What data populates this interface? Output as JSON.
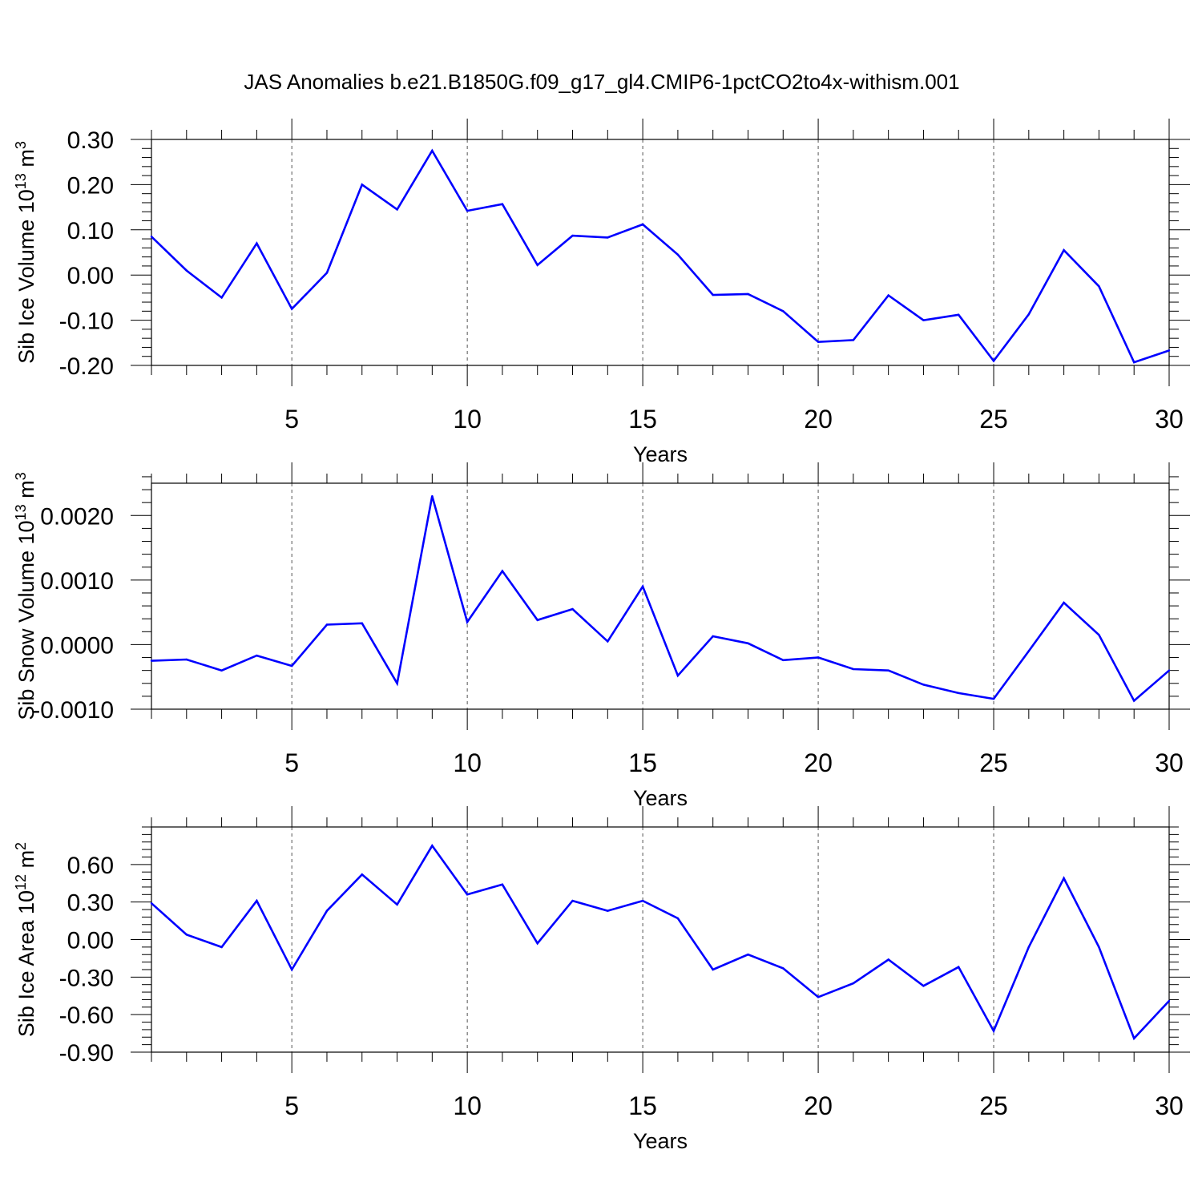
{
  "title": "JAS Anomalies b.e21.B1850G.f09_g17_gl4.CMIP6-1pctCO2to4x-withism.001",
  "colors": {
    "series": "#0000ff",
    "axis": "#000000",
    "grid": "#555555"
  },
  "chart_data": [
    {
      "type": "line",
      "xlabel": "Years",
      "ylabel": "Sib Ice Volume 10",
      "ylabel_exp": "13",
      "ylabel_unit": " m",
      "ylabel_unit_exp": "3",
      "xlim": [
        1,
        30
      ],
      "ylim": [
        -0.2,
        0.3
      ],
      "xticks": [
        5,
        10,
        15,
        20,
        25,
        30
      ],
      "xtick_labels": [
        "5",
        "10",
        "15",
        "20",
        "25",
        "30"
      ],
      "yticks": [
        -0.2,
        -0.1,
        0.0,
        0.1,
        0.2,
        0.3
      ],
      "ytick_labels": [
        "-0.20",
        "-0.10",
        "0.00",
        "0.10",
        "0.20",
        "0.30"
      ],
      "x_gridlines": [
        5,
        10,
        15,
        20,
        25
      ],
      "x": [
        1,
        2,
        3,
        4,
        5,
        6,
        7,
        8,
        9,
        10,
        11,
        12,
        13,
        14,
        15,
        16,
        17,
        18,
        19,
        20,
        21,
        22,
        23,
        24,
        25,
        26,
        27,
        28,
        29,
        30
      ],
      "values": [
        0.085,
        0.01,
        -0.05,
        0.07,
        -0.075,
        0.005,
        0.2,
        0.145,
        0.275,
        0.142,
        0.157,
        0.022,
        0.087,
        0.083,
        0.112,
        0.045,
        -0.044,
        -0.042,
        -0.08,
        -0.148,
        -0.144,
        -0.045,
        -0.1,
        -0.088,
        -0.19,
        -0.087,
        0.055,
        -0.025,
        -0.193,
        -0.167
      ]
    },
    {
      "type": "line",
      "xlabel": "Years",
      "ylabel": "Sib Snow Volume 10",
      "ylabel_exp": "13",
      "ylabel_unit": " m",
      "ylabel_unit_exp": "3",
      "xlim": [
        1,
        30
      ],
      "ylim": [
        -0.001,
        0.0025
      ],
      "xticks": [
        5,
        10,
        15,
        20,
        25,
        30
      ],
      "xtick_labels": [
        "5",
        "10",
        "15",
        "20",
        "25",
        "30"
      ],
      "yticks": [
        -0.001,
        0.0,
        0.001,
        0.002
      ],
      "ytick_labels": [
        "-0.0010",
        "0.0000",
        "0.0010",
        "0.0020"
      ],
      "x_gridlines": [
        5,
        10,
        15,
        20,
        25
      ],
      "x": [
        1,
        2,
        3,
        4,
        5,
        6,
        7,
        8,
        9,
        10,
        11,
        12,
        13,
        14,
        15,
        16,
        17,
        18,
        19,
        20,
        21,
        22,
        23,
        24,
        25,
        26,
        27,
        28,
        29,
        30
      ],
      "values": [
        -0.00025,
        -0.00023,
        -0.0004,
        -0.00017,
        -0.00033,
        0.00031,
        0.00033,
        -0.0006,
        0.0023,
        0.00035,
        0.00114,
        0.00038,
        0.00055,
        5e-05,
        0.0009,
        -0.00048,
        0.00013,
        2e-05,
        -0.00024,
        -0.0002,
        -0.00038,
        -0.0004,
        -0.00062,
        -0.00075,
        -0.00084,
        -0.0001,
        0.00065,
        0.00015,
        -0.00087,
        -0.0004
      ]
    },
    {
      "type": "line",
      "xlabel": "Years",
      "ylabel": "Sib Ice Area 10",
      "ylabel_exp": "12",
      "ylabel_unit": " m",
      "ylabel_unit_exp": "2",
      "xlim": [
        1,
        30
      ],
      "ylim": [
        -0.9,
        0.9
      ],
      "xticks": [
        5,
        10,
        15,
        20,
        25,
        30
      ],
      "xtick_labels": [
        "5",
        "10",
        "15",
        "20",
        "25",
        "30"
      ],
      "yticks": [
        -0.9,
        -0.6,
        -0.3,
        0.0,
        0.3,
        0.6
      ],
      "ytick_labels": [
        "-0.90",
        "-0.60",
        "-0.30",
        "0.00",
        "0.30",
        "0.60"
      ],
      "x_gridlines": [
        5,
        10,
        15,
        20,
        25
      ],
      "x": [
        1,
        2,
        3,
        4,
        5,
        6,
        7,
        8,
        9,
        10,
        11,
        12,
        13,
        14,
        15,
        16,
        17,
        18,
        19,
        20,
        21,
        22,
        23,
        24,
        25,
        26,
        27,
        28,
        29,
        30
      ],
      "values": [
        0.29,
        0.04,
        -0.06,
        0.31,
        -0.24,
        0.23,
        0.52,
        0.28,
        0.75,
        0.36,
        0.44,
        -0.03,
        0.31,
        0.23,
        0.31,
        0.17,
        -0.24,
        -0.12,
        -0.23,
        -0.46,
        -0.35,
        -0.16,
        -0.37,
        -0.22,
        -0.73,
        -0.06,
        0.49,
        -0.06,
        -0.79,
        -0.49
      ]
    }
  ]
}
